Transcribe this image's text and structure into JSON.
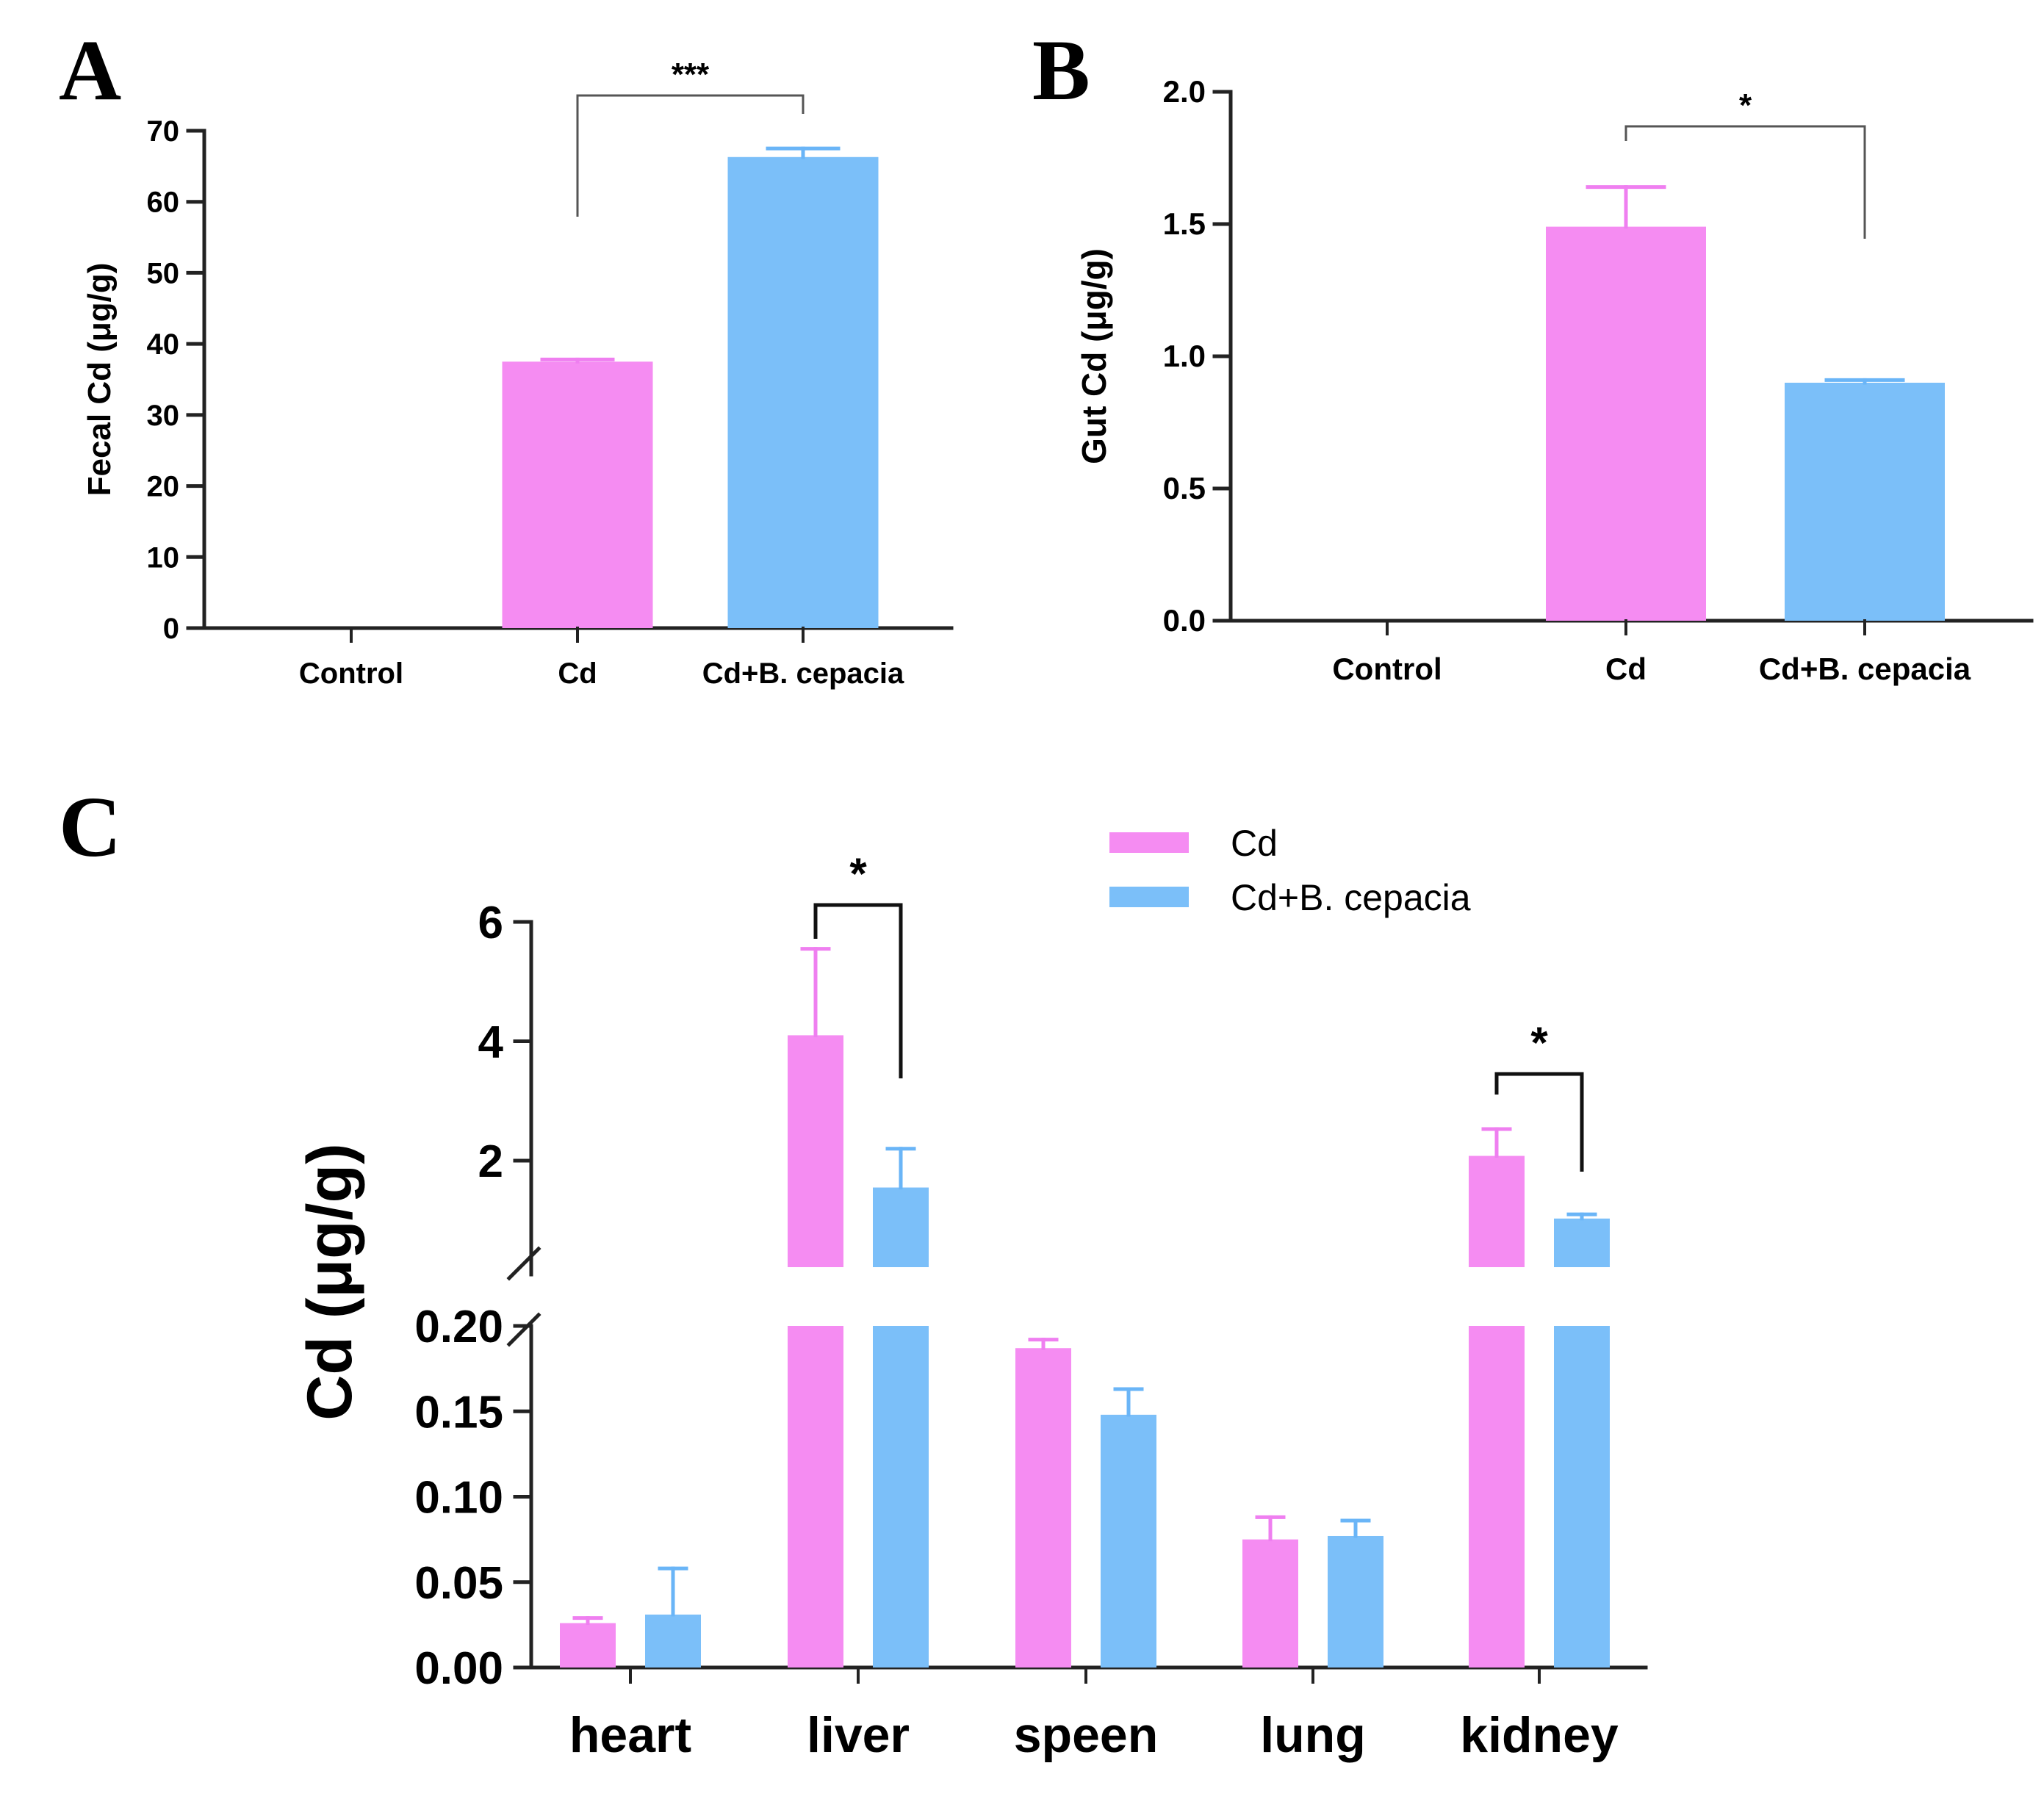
{
  "colors": {
    "cd": "#f58cf2",
    "cd_bcepacia": "#7bbff9",
    "axis": "#222222",
    "error_cd": "#ef7ff0",
    "error_b": "#6ab5f7"
  },
  "panel_letters": {
    "a": "A",
    "b": "B",
    "c": "C"
  },
  "chart_data": [
    {
      "id": "A",
      "type": "bar",
      "title": "",
      "xlabel": "",
      "ylabel": "Fecal Cd (μg/g)",
      "categories": [
        "Control",
        "Cd",
        "Cd+B. cepacia"
      ],
      "values": [
        0,
        37.5,
        66.3
      ],
      "errors": [
        0,
        0.3,
        1.2
      ],
      "ylim": [
        0,
        70
      ],
      "yticks": [
        0,
        10,
        20,
        30,
        40,
        50,
        60,
        70
      ],
      "ytick_labels": [
        "0",
        "10",
        "20",
        "30",
        "40",
        "50",
        "60",
        "70"
      ],
      "significance": [
        {
          "from": "Cd",
          "to": "Cd+B. cepacia",
          "label": "***"
        }
      ]
    },
    {
      "id": "B",
      "type": "bar",
      "title": "",
      "xlabel": "",
      "ylabel": "Gut Cd (μg/g)",
      "categories": [
        "Control",
        "Cd",
        "Cd+B. cepacia"
      ],
      "values": [
        0,
        1.49,
        0.9
      ],
      "errors": [
        0,
        0.15,
        0.01
      ],
      "ylim": [
        0,
        2.0
      ],
      "yticks": [
        0,
        0.5,
        1.0,
        1.5,
        2.0
      ],
      "ytick_labels": [
        "0.0",
        "0.5",
        "1.0",
        "1.5",
        "2.0"
      ],
      "significance": [
        {
          "from": "Cd",
          "to": "Cd+B. cepacia",
          "label": "*"
        }
      ]
    },
    {
      "id": "C",
      "type": "bar",
      "title": "",
      "xlabel": "",
      "ylabel": "Cd (μg/g)",
      "categories": [
        "heart",
        "liver",
        "speen",
        "lung",
        "kidney"
      ],
      "series": [
        {
          "name": "Cd",
          "values": [
            0.026,
            4.1,
            0.187,
            0.075,
            2.08
          ],
          "errors": [
            0.003,
            1.45,
            0.005,
            0.013,
            0.45
          ]
        },
        {
          "name": "Cd+B. cepacia",
          "values": [
            0.031,
            1.55,
            0.148,
            0.077,
            1.03
          ],
          "errors": [
            0.027,
            0.65,
            0.015,
            0.009,
            0.07
          ]
        }
      ],
      "axis_break": {
        "lower_range": [
          0,
          0.2
        ],
        "upper_range": [
          0.25,
          6
        ]
      },
      "yticks_lower": [
        "0.00",
        "0.05",
        "0.10",
        "0.15",
        "0.20"
      ],
      "yticks_upper": [
        "2",
        "4",
        "6"
      ],
      "legend": [
        "Cd",
        "Cd+B. cepacia"
      ],
      "legend_position": "top-right",
      "significance": [
        {
          "category": "liver",
          "label": "*"
        },
        {
          "category": "kidney",
          "label": "*"
        }
      ]
    }
  ]
}
